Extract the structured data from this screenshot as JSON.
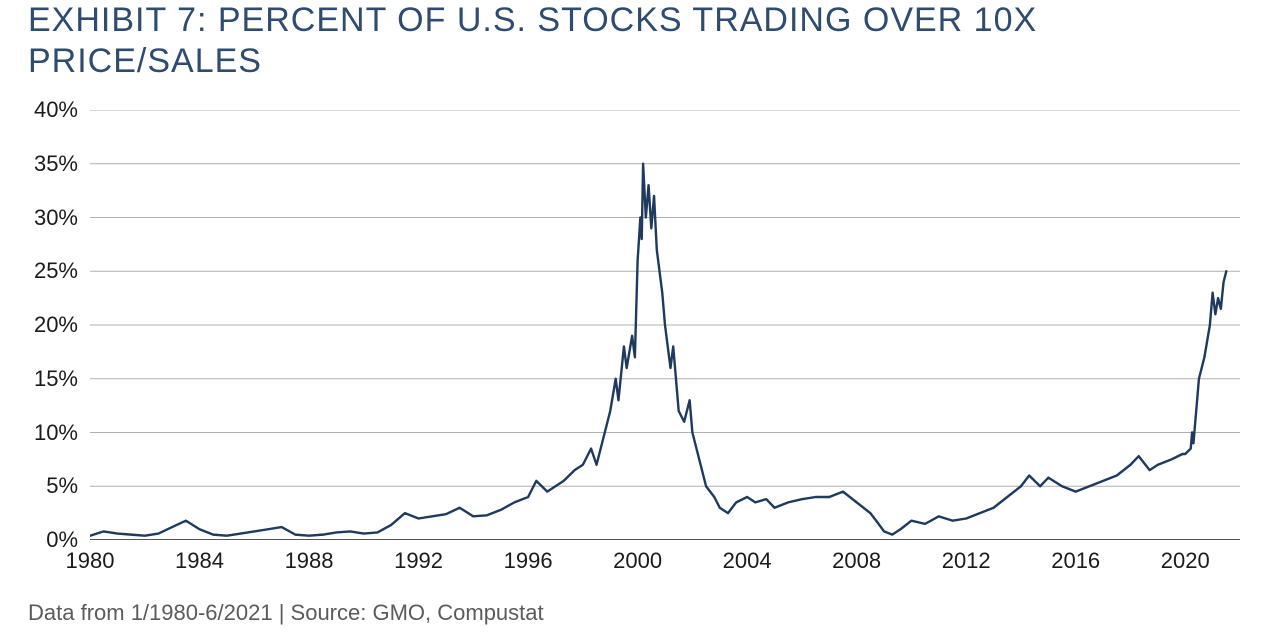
{
  "title": "EXHIBIT 7: PERCENT OF U.S. STOCKS TRADING OVER 10X PRICE/SALES",
  "footer": "Data from 1/1980-6/2021 | Source: GMO, Compustat",
  "chart": {
    "type": "line",
    "background_color": "#ffffff",
    "grid_color": "#b0b0b0",
    "axis_color": "#1b1b1b",
    "line_color": "#1e3a5f",
    "line_width": 2.4,
    "title_color": "#2e4c6f",
    "title_fontsize": 34,
    "label_fontsize": 22,
    "label_color": "#1b1b1b",
    "footer_color": "#5b5b5b",
    "footer_fontsize": 22,
    "x": {
      "min": 1980,
      "max": 2022,
      "ticks": [
        1980,
        1984,
        1988,
        1992,
        1996,
        2000,
        2004,
        2008,
        2012,
        2016,
        2020
      ],
      "tick_labels": [
        "1980",
        "1984",
        "1988",
        "1992",
        "1996",
        "2000",
        "2004",
        "2008",
        "2012",
        "2016",
        "2020"
      ]
    },
    "y": {
      "min": 0,
      "max": 40,
      "ticks": [
        0,
        5,
        10,
        15,
        20,
        25,
        30,
        35,
        40
      ],
      "tick_labels": [
        "0%",
        "5%",
        "10%",
        "15%",
        "20%",
        "25%",
        "30%",
        "35%",
        "40%"
      ]
    },
    "series": [
      {
        "name": "pct_over_10x_ps",
        "color": "#1e3a5f",
        "points": [
          [
            1980.0,
            0.4
          ],
          [
            1980.5,
            0.8
          ],
          [
            1981.0,
            0.6
          ],
          [
            1981.5,
            0.5
          ],
          [
            1982.0,
            0.4
          ],
          [
            1982.5,
            0.6
          ],
          [
            1983.0,
            1.2
          ],
          [
            1983.5,
            1.8
          ],
          [
            1984.0,
            1.0
          ],
          [
            1984.5,
            0.5
          ],
          [
            1985.0,
            0.4
          ],
          [
            1985.5,
            0.6
          ],
          [
            1986.0,
            0.8
          ],
          [
            1986.5,
            1.0
          ],
          [
            1987.0,
            1.2
          ],
          [
            1987.5,
            0.5
          ],
          [
            1988.0,
            0.4
          ],
          [
            1988.5,
            0.5
          ],
          [
            1989.0,
            0.7
          ],
          [
            1989.5,
            0.8
          ],
          [
            1990.0,
            0.6
          ],
          [
            1990.5,
            0.7
          ],
          [
            1991.0,
            1.4
          ],
          [
            1991.5,
            2.5
          ],
          [
            1992.0,
            2.0
          ],
          [
            1992.5,
            2.2
          ],
          [
            1993.0,
            2.4
          ],
          [
            1993.5,
            3.0
          ],
          [
            1994.0,
            2.2
          ],
          [
            1994.5,
            2.3
          ],
          [
            1995.0,
            2.8
          ],
          [
            1995.5,
            3.5
          ],
          [
            1996.0,
            4.0
          ],
          [
            1996.3,
            5.5
          ],
          [
            1996.7,
            4.5
          ],
          [
            1997.0,
            5.0
          ],
          [
            1997.3,
            5.5
          ],
          [
            1997.7,
            6.5
          ],
          [
            1998.0,
            7.0
          ],
          [
            1998.3,
            8.5
          ],
          [
            1998.5,
            7.0
          ],
          [
            1998.8,
            10.0
          ],
          [
            1999.0,
            12.0
          ],
          [
            1999.2,
            15.0
          ],
          [
            1999.3,
            13.0
          ],
          [
            1999.5,
            18.0
          ],
          [
            1999.6,
            16.0
          ],
          [
            1999.8,
            19.0
          ],
          [
            1999.9,
            17.0
          ],
          [
            2000.0,
            26.0
          ],
          [
            2000.1,
            30.0
          ],
          [
            2000.15,
            28.0
          ],
          [
            2000.2,
            35.0
          ],
          [
            2000.3,
            30.0
          ],
          [
            2000.4,
            33.0
          ],
          [
            2000.5,
            29.0
          ],
          [
            2000.6,
            32.0
          ],
          [
            2000.7,
            27.0
          ],
          [
            2000.8,
            25.0
          ],
          [
            2000.9,
            23.0
          ],
          [
            2001.0,
            20.0
          ],
          [
            2001.2,
            16.0
          ],
          [
            2001.3,
            18.0
          ],
          [
            2001.5,
            12.0
          ],
          [
            2001.7,
            11.0
          ],
          [
            2001.9,
            13.0
          ],
          [
            2002.0,
            10.0
          ],
          [
            2002.3,
            7.0
          ],
          [
            2002.5,
            5.0
          ],
          [
            2002.8,
            4.0
          ],
          [
            2003.0,
            3.0
          ],
          [
            2003.3,
            2.5
          ],
          [
            2003.6,
            3.5
          ],
          [
            2004.0,
            4.0
          ],
          [
            2004.3,
            3.5
          ],
          [
            2004.7,
            3.8
          ],
          [
            2005.0,
            3.0
          ],
          [
            2005.5,
            3.5
          ],
          [
            2006.0,
            3.8
          ],
          [
            2006.5,
            4.0
          ],
          [
            2007.0,
            4.0
          ],
          [
            2007.5,
            4.5
          ],
          [
            2008.0,
            3.5
          ],
          [
            2008.5,
            2.5
          ],
          [
            2008.8,
            1.5
          ],
          [
            2009.0,
            0.8
          ],
          [
            2009.3,
            0.5
          ],
          [
            2009.6,
            1.0
          ],
          [
            2010.0,
            1.8
          ],
          [
            2010.5,
            1.5
          ],
          [
            2011.0,
            2.2
          ],
          [
            2011.5,
            1.8
          ],
          [
            2012.0,
            2.0
          ],
          [
            2012.5,
            2.5
          ],
          [
            2013.0,
            3.0
          ],
          [
            2013.5,
            4.0
          ],
          [
            2014.0,
            5.0
          ],
          [
            2014.3,
            6.0
          ],
          [
            2014.7,
            5.0
          ],
          [
            2015.0,
            5.8
          ],
          [
            2015.5,
            5.0
          ],
          [
            2016.0,
            4.5
          ],
          [
            2016.5,
            5.0
          ],
          [
            2017.0,
            5.5
          ],
          [
            2017.5,
            6.0
          ],
          [
            2018.0,
            7.0
          ],
          [
            2018.3,
            7.8
          ],
          [
            2018.7,
            6.5
          ],
          [
            2019.0,
            7.0
          ],
          [
            2019.5,
            7.5
          ],
          [
            2019.9,
            8.0
          ],
          [
            2020.0,
            8.0
          ],
          [
            2020.2,
            8.5
          ],
          [
            2020.25,
            10.0
          ],
          [
            2020.3,
            9.0
          ],
          [
            2020.5,
            15.0
          ],
          [
            2020.7,
            17.0
          ],
          [
            2020.9,
            20.0
          ],
          [
            2021.0,
            23.0
          ],
          [
            2021.1,
            21.0
          ],
          [
            2021.2,
            22.5
          ],
          [
            2021.3,
            21.5
          ],
          [
            2021.4,
            24.0
          ],
          [
            2021.5,
            25.0
          ]
        ]
      }
    ]
  }
}
